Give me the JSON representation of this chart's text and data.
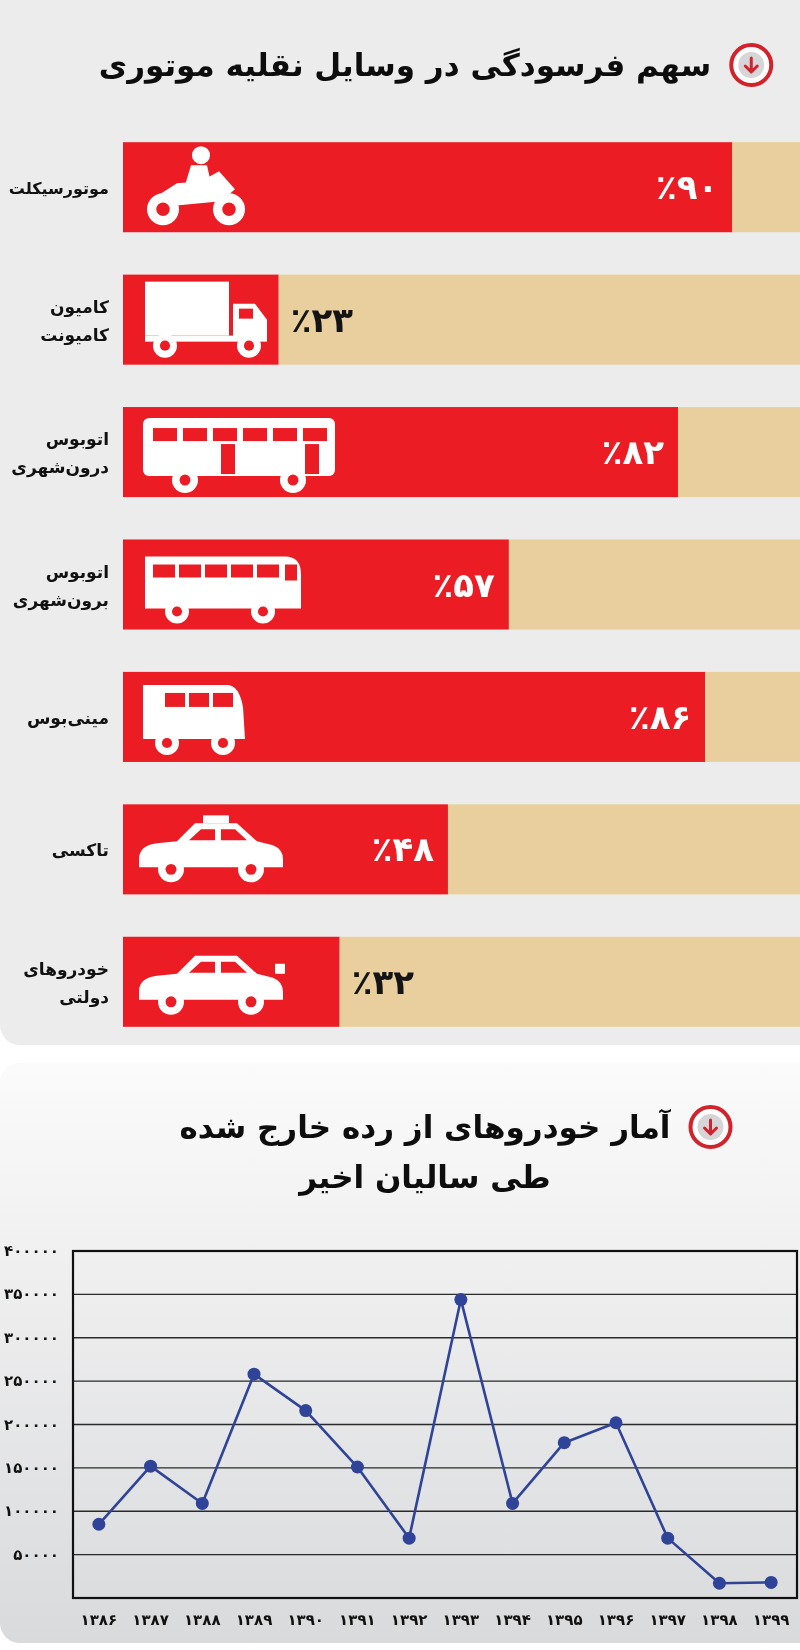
{
  "chart_data": [
    {
      "type": "bar",
      "orientation": "horizontal",
      "stacked": true,
      "title": "سهم فرسودگی در وسایل نقلیه موتوری",
      "categories": [
        "موتورسیکلت",
        "کامیون\nکامیونت",
        "اتوبوس\nدرون‌شهری",
        "اتوبوس\nبرون‌شهری",
        "مینی‌بوس",
        "تاکسی",
        "خودروهای\nدولتی"
      ],
      "series": [
        {
          "color": "#ec1c24",
          "values": [
            90,
            23,
            82,
            57,
            86,
            48,
            32
          ],
          "value_labels": [
            "٪۹۰",
            "٪۲۳",
            "٪۸۲",
            "٪۵۷",
            "٪۸۶",
            "٪۴۸",
            "٪۳۲"
          ]
        },
        {
          "color": "#e8cf9d",
          "values": [
            10,
            77,
            18,
            43,
            14,
            52,
            68
          ]
        }
      ],
      "xlim": [
        0,
        100
      ],
      "tick_labels": "y"
    },
    {
      "type": "line",
      "title": "آمار خودروهای از رده خارج شده\nطی سالیان اخیر",
      "categories": [
        "۱۳۸۶",
        "۱۳۸۷",
        "۱۳۸۸",
        "۱۳۸۹",
        "۱۳۹۰",
        "۱۳۹۱",
        "۱۳۹۲",
        "۱۳۹۳",
        "۱۳۹۴",
        "۱۳۹۵",
        "۱۳۹۶",
        "۱۳۹۷",
        "۱۳۹۸",
        "۱۳۹۹"
      ],
      "values": [
        85000,
        152000,
        109000,
        258000,
        216000,
        151000,
        69000,
        344000,
        109000,
        179000,
        202000,
        69000,
        17000,
        18000
      ],
      "color": "#2f4498",
      "ylim": [
        0,
        400000
      ],
      "yticks": [
        {
          "value": 50000,
          "label": "۵۰۰۰۰"
        },
        {
          "value": 100000,
          "label": "۱۰۰۰۰۰"
        },
        {
          "value": 150000,
          "label": "۱۵۰۰۰۰"
        },
        {
          "value": 200000,
          "label": "۲۰۰۰۰۰"
        },
        {
          "value": 250000,
          "label": "۲۵۰۰۰۰"
        },
        {
          "value": 300000,
          "label": "۳۰۰۰۰۰"
        },
        {
          "value": 350000,
          "label": "۳۵۰۰۰۰"
        },
        {
          "value": 400000,
          "label": "۴۰۰۰۰۰"
        }
      ],
      "grid": "y",
      "marker": "circle"
    }
  ]
}
